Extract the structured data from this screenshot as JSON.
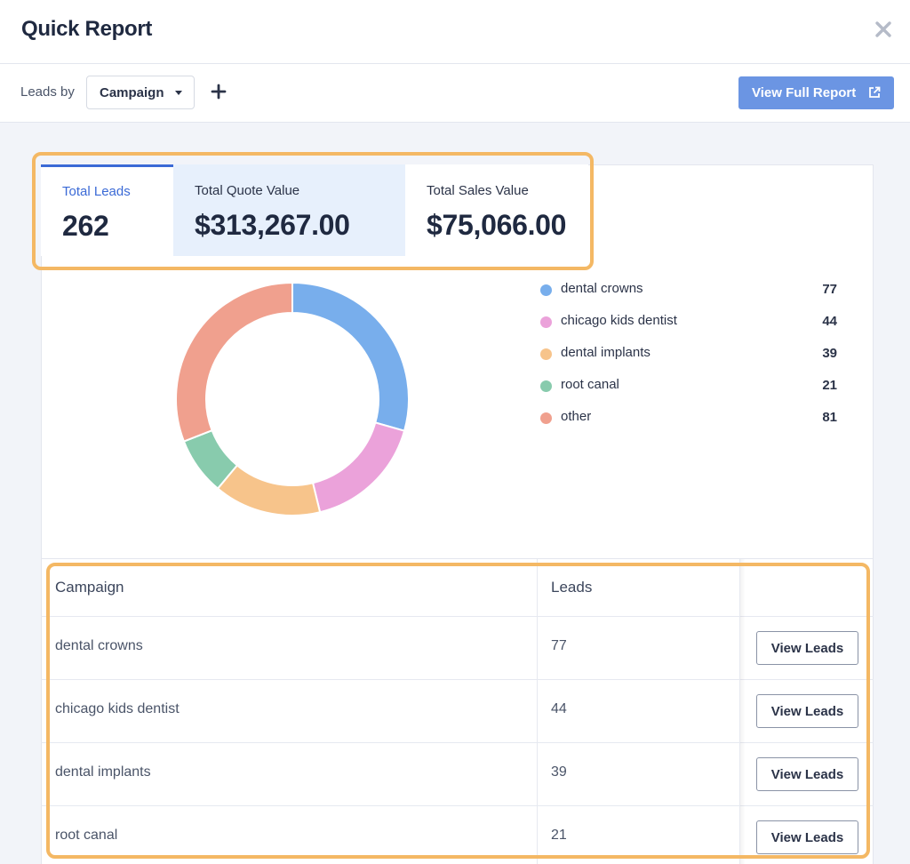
{
  "header": {
    "title": "Quick Report",
    "close_icon": "close-icon"
  },
  "toolbar": {
    "leads_by_label": "Leads by",
    "group_select": {
      "selected": "Campaign"
    },
    "add_icon": "plus-icon",
    "full_report_label": "View Full Report",
    "full_report_icon": "external-link-icon",
    "accent_color": "#6b95e3"
  },
  "metrics": [
    {
      "label": "Total Leads",
      "value": "262",
      "state": "active"
    },
    {
      "label": "Total Quote Value",
      "value": "$313,267.00",
      "state": "highlight"
    },
    {
      "label": "Total Sales Value",
      "value": "$75,066.00",
      "state": "default"
    }
  ],
  "chart_data": {
    "type": "pie",
    "variant": "donut",
    "categories": [
      "dental crowns",
      "chicago kids dentist",
      "dental implants",
      "root canal",
      "other"
    ],
    "values": [
      77,
      44,
      39,
      21,
      81
    ],
    "colors": [
      "#78aeec",
      "#eba2da",
      "#f7c48b",
      "#88cbad",
      "#f0a08e"
    ],
    "legend_position": "right"
  },
  "legend": [
    {
      "label": "dental crowns",
      "count": "77",
      "color": "#78aeec"
    },
    {
      "label": "chicago kids dentist",
      "count": "44",
      "color": "#eba2da"
    },
    {
      "label": "dental implants",
      "count": "39",
      "color": "#f7c48b"
    },
    {
      "label": "root canal",
      "count": "21",
      "color": "#88cbad"
    },
    {
      "label": "other",
      "count": "81",
      "color": "#f0a08e"
    }
  ],
  "table": {
    "columns": [
      "Campaign",
      "Leads",
      ""
    ],
    "button_label": "View Leads",
    "rows": [
      {
        "campaign": "dental crowns",
        "leads": "77"
      },
      {
        "campaign": "chicago kids dentist",
        "leads": "44"
      },
      {
        "campaign": "dental implants",
        "leads": "39"
      },
      {
        "campaign": "root canal",
        "leads": "21"
      }
    ]
  },
  "annotation_color": "#f4b864"
}
